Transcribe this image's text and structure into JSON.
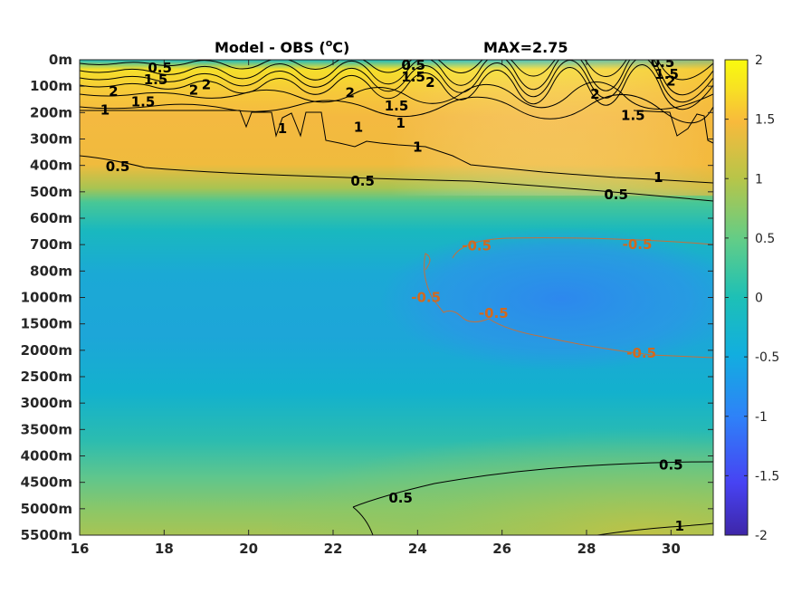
{
  "chart_data": {
    "type": "heatmap",
    "title": "Model - OBS (",
    "title_sup": "o",
    "title_unit": "C)",
    "max_label": "MAX=2.75",
    "x_ticks": [
      "16",
      "18",
      "20",
      "22",
      "24",
      "26",
      "28",
      "30"
    ],
    "x_tick_values": [
      16,
      18,
      20,
      22,
      24,
      26,
      28,
      30
    ],
    "xlim": [
      16,
      31
    ],
    "y_ticks": [
      "0m",
      "100m",
      "200m",
      "300m",
      "400m",
      "500m",
      "600m",
      "700m",
      "800m",
      "1000m",
      "1500m",
      "2000m",
      "2500m",
      "3000m",
      "3500m",
      "4000m",
      "4500m",
      "5000m",
      "5500m"
    ],
    "colorbar": {
      "ticks": [
        "2",
        "1.5",
        "1",
        "0.5",
        "0",
        "-0.5",
        "-1",
        "-1.5",
        "-2"
      ],
      "range": [
        -2,
        2
      ],
      "colormap": [
        "#3e26a8",
        "#4743f3",
        "#2e82f8",
        "#12aedf",
        "#1dc0b6",
        "#61cd88",
        "#b7c549",
        "#f8ba3c",
        "#f8e123",
        "#f9fb0e"
      ]
    },
    "contour_labels": [
      {
        "text": "0.5",
        "x": 17.9,
        "depth_idx": 0.3,
        "color": "#000000"
      },
      {
        "text": "1.5",
        "x": 17.8,
        "depth_idx": 0.75,
        "color": "#000000"
      },
      {
        "text": "2",
        "x": 16.8,
        "depth_idx": 1.2,
        "color": "#000000"
      },
      {
        "text": "2",
        "x": 18.7,
        "depth_idx": 1.15,
        "color": "#000000"
      },
      {
        "text": "2",
        "x": 19.0,
        "depth_idx": 0.95,
        "color": "#000000"
      },
      {
        "text": "1.5",
        "x": 17.5,
        "depth_idx": 1.6,
        "color": "#000000"
      },
      {
        "text": "1",
        "x": 16.6,
        "depth_idx": 1.9,
        "color": "#000000"
      },
      {
        "text": "0.5",
        "x": 23.9,
        "depth_idx": 0.2,
        "color": "#000000"
      },
      {
        "text": "1.5",
        "x": 23.9,
        "depth_idx": 0.65,
        "color": "#000000"
      },
      {
        "text": "2",
        "x": 24.3,
        "depth_idx": 0.85,
        "color": "#000000"
      },
      {
        "text": "2",
        "x": 22.4,
        "depth_idx": 1.25,
        "color": "#000000"
      },
      {
        "text": "1.5",
        "x": 23.5,
        "depth_idx": 1.75,
        "color": "#000000"
      },
      {
        "text": "1",
        "x": 20.8,
        "depth_idx": 2.6,
        "color": "#000000"
      },
      {
        "text": "1",
        "x": 22.6,
        "depth_idx": 2.55,
        "color": "#000000"
      },
      {
        "text": "1",
        "x": 23.6,
        "depth_idx": 2.4,
        "color": "#000000"
      },
      {
        "text": "1",
        "x": 24.0,
        "depth_idx": 3.3,
        "color": "#000000"
      },
      {
        "text": "0.5",
        "x": 29.8,
        "depth_idx": 0.1,
        "color": "#000000"
      },
      {
        "text": "1.5",
        "x": 29.9,
        "depth_idx": 0.55,
        "color": "#000000"
      },
      {
        "text": "2",
        "x": 30.0,
        "depth_idx": 0.8,
        "color": "#000000"
      },
      {
        "text": "2",
        "x": 28.2,
        "depth_idx": 1.3,
        "color": "#000000"
      },
      {
        "text": "1.5",
        "x": 29.1,
        "depth_idx": 2.1,
        "color": "#000000"
      },
      {
        "text": "0.5",
        "x": 16.9,
        "depth_idx": 4.05,
        "color": "#000000"
      },
      {
        "text": "0.5",
        "x": 22.7,
        "depth_idx": 4.6,
        "color": "#000000"
      },
      {
        "text": "1",
        "x": 24.0,
        "depth_idx": 3.3,
        "color": "#000000"
      },
      {
        "text": "1",
        "x": 29.7,
        "depth_idx": 4.45,
        "color": "#000000"
      },
      {
        "text": "0.5",
        "x": 28.7,
        "depth_idx": 5.1,
        "color": "#000000"
      },
      {
        "text": "-0.5",
        "x": 25.4,
        "depth_idx": 7.05,
        "color": "#d2691e"
      },
      {
        "text": "-0.5",
        "x": 29.2,
        "depth_idx": 7.0,
        "color": "#d2691e"
      },
      {
        "text": "-0.5",
        "x": 24.2,
        "depth_idx": 9.0,
        "color": "#d2691e"
      },
      {
        "text": "-0.5",
        "x": 25.8,
        "depth_idx": 9.6,
        "color": "#d2691e"
      },
      {
        "text": "-0.5",
        "x": 29.3,
        "depth_idx": 11.1,
        "color": "#d2691e"
      },
      {
        "text": "0.5",
        "x": 30.0,
        "depth_idx": 15.35,
        "color": "#000000"
      },
      {
        "text": "0.5",
        "x": 23.6,
        "depth_idx": 16.6,
        "color": "#000000"
      },
      {
        "text": "1",
        "x": 30.2,
        "depth_idx": 17.65,
        "color": "#000000"
      }
    ]
  }
}
